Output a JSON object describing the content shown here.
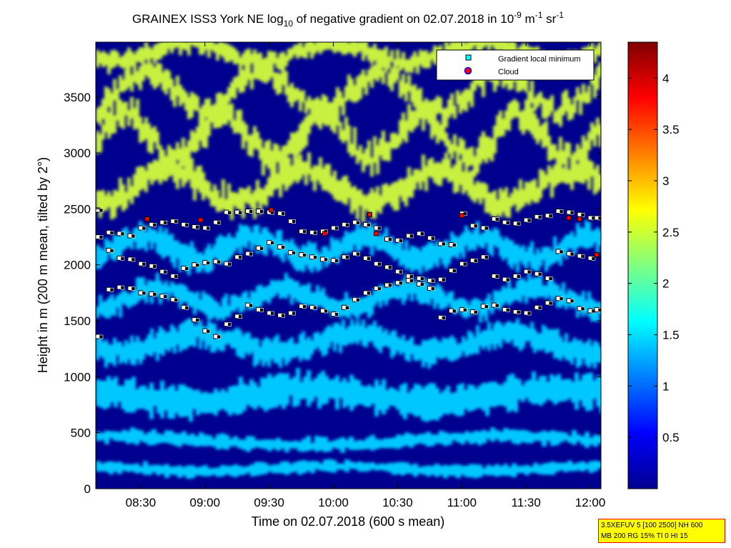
{
  "title": {
    "prefix": "GRAINEX ISS3 York NE log",
    "sub": "10",
    "middle": " of negative gradient on 02.07.2018 in 10",
    "sup1": "-9",
    "unit1": " m",
    "sup2": "-1",
    "unit2": " sr",
    "sup3": "-1"
  },
  "infobox": {
    "line1": "3.5XEFUV 5 [100 2500] NH 600",
    "line2": "MB 200 RG 15% TI 0 HI 15"
  },
  "colors": {
    "background_field": "#00008f",
    "low_aerosol": "#00c8ff",
    "high_aerosol": "#c8f040",
    "marker_local_min_face": "#ffffff",
    "marker_edge": "#000000",
    "cloud_marker": "#ff0000",
    "legend_min_marker": "#00ffff"
  },
  "chart_data": {
    "type": "heatmap",
    "title": "GRAINEX ISS3 York NE log10 of negative gradient on 02.07.2018 in 10^-9 m^-1 sr^-1",
    "xlabel": "Time on 02.07.2018 (600 s mean)",
    "ylabel": "Height in m (200 m mean, tilted by 2°)",
    "x_range": [
      "08:09",
      "12:05"
    ],
    "x_ticks": [
      "08:30",
      "09:00",
      "09:30",
      "10:00",
      "10:30",
      "11:00",
      "11:30",
      "12:00"
    ],
    "ylim": [
      0,
      3990
    ],
    "y_ticks": [
      0,
      500,
      1000,
      1500,
      2000,
      2500,
      3000,
      3500
    ],
    "colorbar": {
      "colormap": "jet",
      "range": [
        0,
        4.35
      ],
      "ticks": [
        0.5,
        1,
        1.5,
        2,
        2.5,
        3,
        3.5,
        4
      ]
    },
    "legend": {
      "placement": "top-right",
      "entries": [
        {
          "label": "Gradient local minimum",
          "marker": "square",
          "color": "#00ffff"
        },
        {
          "label": "Cloud",
          "marker": "circle",
          "color": "#ff0000"
        }
      ]
    },
    "series": [
      {
        "name": "Gradient local minimum",
        "layers": [
          {
            "label": "upper",
            "points": [
              [
                "08:10",
                2490
              ],
              [
                "08:15",
                2290
              ],
              [
                "08:20",
                2280
              ],
              [
                "08:25",
                2260
              ],
              [
                "08:30",
                2330
              ],
              [
                "08:35",
                2360
              ],
              [
                "08:40",
                2380
              ],
              [
                "08:45",
                2390
              ],
              [
                "08:50",
                2360
              ],
              [
                "08:55",
                2340
              ],
              [
                "09:00",
                2330
              ],
              [
                "09:05",
                2380
              ],
              [
                "09:10",
                2470
              ],
              [
                "09:15",
                2470
              ],
              [
                "09:20",
                2480
              ],
              [
                "09:25",
                2480
              ],
              [
                "09:30",
                2470
              ],
              [
                "09:35",
                2460
              ],
              [
                "09:40",
                2390
              ],
              [
                "09:45",
                2300
              ],
              [
                "09:50",
                2290
              ],
              [
                "09:55",
                2300
              ],
              [
                "10:00",
                2330
              ],
              [
                "10:05",
                2360
              ],
              [
                "10:10",
                2380
              ],
              [
                "10:15",
                2360
              ],
              [
                "10:20",
                2330
              ],
              [
                "10:25",
                2230
              ],
              [
                "10:30",
                2220
              ],
              [
                "10:35",
                2260
              ],
              [
                "10:40",
                2280
              ],
              [
                "10:45",
                2240
              ],
              [
                "10:50",
                2190
              ],
              [
                "10:55",
                2180
              ],
              [
                "11:00",
                2460
              ],
              [
                "11:05",
                2350
              ],
              [
                "11:10",
                2330
              ],
              [
                "11:15",
                2410
              ],
              [
                "11:20",
                2380
              ],
              [
                "11:25",
                2370
              ],
              [
                "11:30",
                2400
              ],
              [
                "11:35",
                2430
              ],
              [
                "11:40",
                2440
              ],
              [
                "11:45",
                2480
              ],
              [
                "11:50",
                2470
              ],
              [
                "11:55",
                2450
              ],
              [
                "12:00",
                2420
              ],
              [
                "12:03",
                2420
              ]
            ]
          },
          {
            "label": "middle",
            "points": [
              [
                "08:10",
                2250
              ],
              [
                "08:15",
                2130
              ],
              [
                "08:20",
                2060
              ],
              [
                "08:25",
                2050
              ],
              [
                "08:30",
                2010
              ],
              [
                "08:35",
                1990
              ],
              [
                "08:40",
                1940
              ],
              [
                "08:45",
                1900
              ],
              [
                "08:50",
                1970
              ],
              [
                "08:55",
                2000
              ],
              [
                "09:00",
                2020
              ],
              [
                "09:05",
                2030
              ],
              [
                "09:10",
                2010
              ],
              [
                "09:15",
                2070
              ],
              [
                "09:20",
                2100
              ],
              [
                "09:25",
                2150
              ],
              [
                "09:30",
                2200
              ],
              [
                "09:35",
                2160
              ],
              [
                "09:40",
                2110
              ],
              [
                "09:45",
                2090
              ],
              [
                "09:50",
                2070
              ],
              [
                "09:55",
                2050
              ],
              [
                "10:00",
                2040
              ],
              [
                "10:05",
                2070
              ],
              [
                "10:10",
                2100
              ],
              [
                "10:15",
                2060
              ],
              [
                "10:20",
                2010
              ],
              [
                "10:25",
                1980
              ],
              [
                "10:30",
                1940
              ],
              [
                "10:35",
                1900
              ],
              [
                "10:40",
                1880
              ],
              [
                "10:45",
                1860
              ],
              [
                "10:50",
                1870
              ],
              [
                "10:55",
                1950
              ],
              [
                "11:00",
                2010
              ],
              [
                "11:05",
                2040
              ],
              [
                "11:10",
                2070
              ],
              [
                "11:15",
                1900
              ],
              [
                "11:20",
                1870
              ],
              [
                "11:25",
                1900
              ],
              [
                "11:30",
                1940
              ],
              [
                "11:35",
                1920
              ],
              [
                "11:40",
                1880
              ],
              [
                "11:45",
                2120
              ],
              [
                "11:50",
                2100
              ],
              [
                "11:55",
                2080
              ],
              [
                "12:00",
                2060
              ]
            ]
          },
          {
            "label": "lower",
            "points": [
              [
                "08:10",
                1360
              ],
              [
                "08:15",
                1780
              ],
              [
                "08:20",
                1800
              ],
              [
                "08:25",
                1790
              ],
              [
                "08:30",
                1750
              ],
              [
                "08:35",
                1740
              ],
              [
                "08:40",
                1720
              ],
              [
                "08:45",
                1690
              ],
              [
                "08:50",
                1620
              ],
              [
                "08:55",
                1510
              ],
              [
                "09:00",
                1410
              ],
              [
                "09:05",
                1360
              ],
              [
                "09:10",
                1470
              ],
              [
                "09:15",
                1540
              ],
              [
                "09:20",
                1640
              ],
              [
                "09:25",
                1600
              ],
              [
                "09:30",
                1570
              ],
              [
                "09:35",
                1550
              ],
              [
                "09:40",
                1570
              ],
              [
                "09:45",
                1630
              ],
              [
                "09:50",
                1620
              ],
              [
                "09:55",
                1590
              ],
              [
                "10:00",
                1560
              ],
              [
                "10:05",
                1620
              ],
              [
                "10:10",
                1690
              ],
              [
                "10:15",
                1750
              ],
              [
                "10:20",
                1790
              ],
              [
                "10:25",
                1820
              ],
              [
                "10:30",
                1840
              ],
              [
                "10:35",
                1860
              ],
              [
                "10:40",
                1830
              ],
              [
                "10:45",
                1790
              ],
              [
                "10:50",
                1530
              ],
              [
                "10:55",
                1590
              ],
              [
                "11:00",
                1600
              ],
              [
                "11:05",
                1580
              ],
              [
                "11:10",
                1630
              ],
              [
                "11:15",
                1640
              ],
              [
                "11:20",
                1600
              ],
              [
                "11:25",
                1580
              ],
              [
                "11:30",
                1570
              ],
              [
                "11:35",
                1620
              ],
              [
                "11:40",
                1660
              ],
              [
                "11:45",
                1700
              ],
              [
                "11:50",
                1680
              ],
              [
                "11:55",
                1610
              ],
              [
                "12:00",
                1590
              ],
              [
                "12:03",
                1600
              ]
            ]
          }
        ]
      },
      {
        "name": "Cloud",
        "points": [
          [
            "08:33",
            2410
          ],
          [
            "08:58",
            2400
          ],
          [
            "09:31",
            2490
          ],
          [
            "09:56",
            2280
          ],
          [
            "10:17",
            2450
          ],
          [
            "10:20",
            2280
          ],
          [
            "11:00",
            2440
          ],
          [
            "11:50",
            2420
          ],
          [
            "11:55",
            2410
          ],
          [
            "12:03",
            2090
          ]
        ]
      }
    ]
  }
}
